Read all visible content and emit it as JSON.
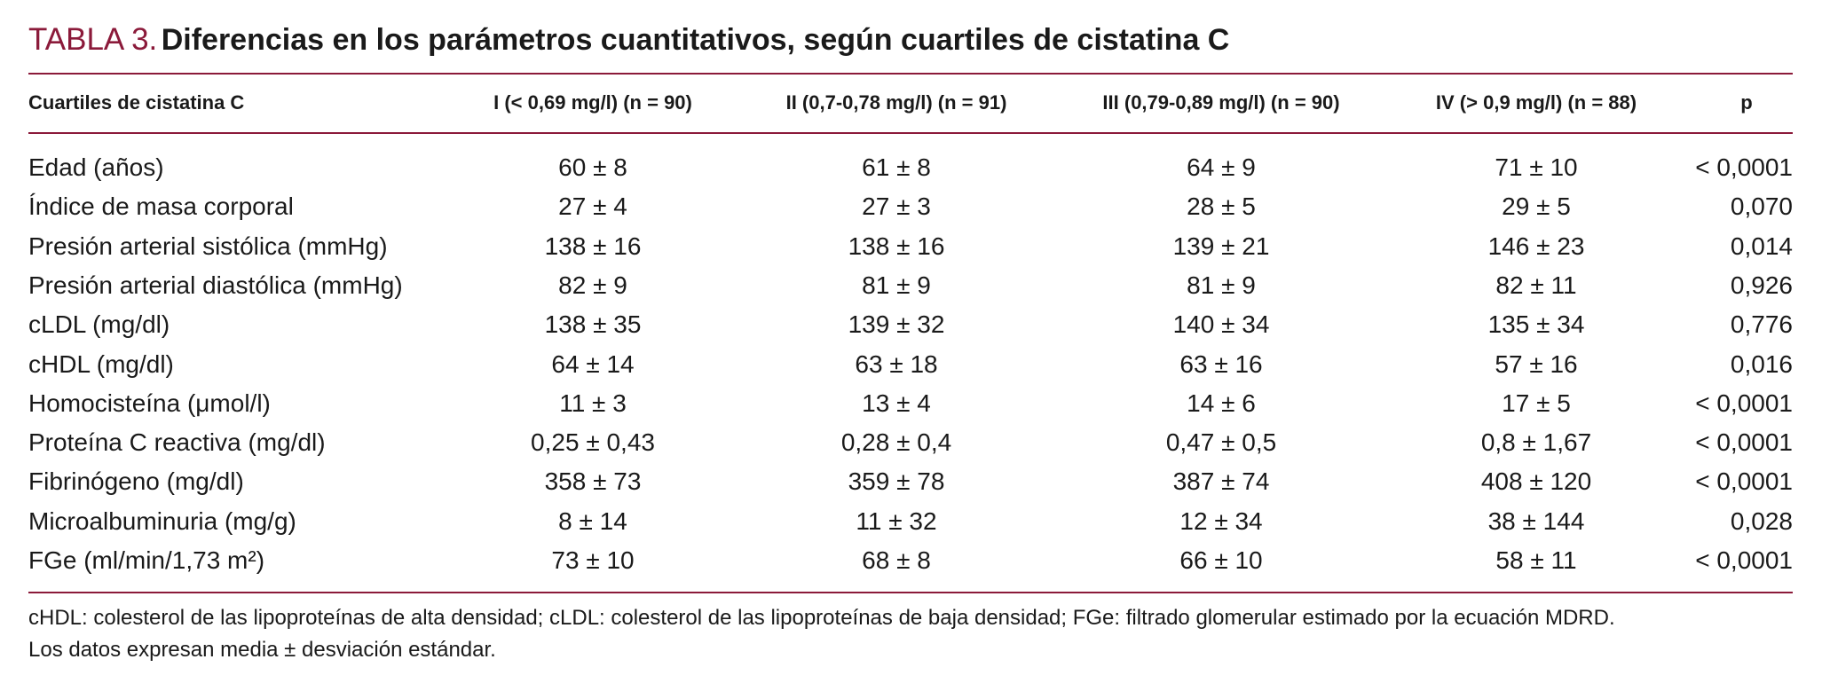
{
  "table_title": {
    "label": "TABLA 3.",
    "text": "Diferencias en los parámetros cuantitativos, según cuartiles de cistatina C"
  },
  "table": {
    "header": [
      "Cuartiles de cistatina C",
      "I (< 0,69 mg/l) (n = 90)",
      "II (0,7-0,78 mg/l) (n = 91)",
      "III (0,79-0,89 mg/l) (n = 90)",
      "IV (> 0,9 mg/l) (n = 88)",
      "p"
    ],
    "rows": [
      [
        "Edad (años)",
        "60 ± 8",
        "61 ± 8",
        "64 ± 9",
        "71 ± 10",
        "< 0,0001"
      ],
      [
        "Índice de masa corporal",
        "27 ± 4",
        "27 ± 3",
        "28 ± 5",
        "29 ± 5",
        "0,070"
      ],
      [
        "Presión arterial sistólica (mmHg)",
        "138 ± 16",
        "138 ± 16",
        "139 ± 21",
        "146 ± 23",
        "0,014"
      ],
      [
        "Presión arterial diastólica (mmHg)",
        "82 ± 9",
        "81 ± 9",
        "81 ± 9",
        "82 ± 11",
        "0,926"
      ],
      [
        "cLDL (mg/dl)",
        "138 ± 35",
        "139 ± 32",
        "140 ± 34",
        "135 ± 34",
        "0,776"
      ],
      [
        "cHDL (mg/dl)",
        "64 ± 14",
        "63 ± 18",
        "63 ± 16",
        "57 ± 16",
        "0,016"
      ],
      [
        "Homocisteína (μmol/l)",
        "11 ± 3",
        "13 ± 4",
        "14 ± 6",
        "17 ± 5",
        "< 0,0001"
      ],
      [
        "Proteína C reactiva (mg/dl)",
        "0,25 ± 0,43",
        "0,28 ± 0,4",
        "0,47 ± 0,5",
        "0,8 ± 1,67",
        "< 0,0001"
      ],
      [
        "Fibrinógeno (mg/dl)",
        "358 ± 73",
        "359 ± 78",
        "387 ± 74",
        "408 ± 120",
        "< 0,0001"
      ],
      [
        "Microalbuminuria (mg/g)",
        "8 ± 14",
        "11 ± 32",
        "12 ± 34",
        "38 ± 144",
        "0,028"
      ],
      [
        "FGe (ml/min/1,73 m²)",
        "73 ± 10",
        "68 ± 8",
        "66 ± 10",
        "58 ± 11",
        "< 0,0001"
      ]
    ]
  },
  "footnotes": [
    "cHDL: colesterol de las lipoproteínas de alta densidad; cLDL: colesterol de las lipoproteínas de baja densidad; FGe: filtrado glomerular estimado por la ecuación MDRD.",
    "Los datos expresan media ± desviación estándar."
  ]
}
